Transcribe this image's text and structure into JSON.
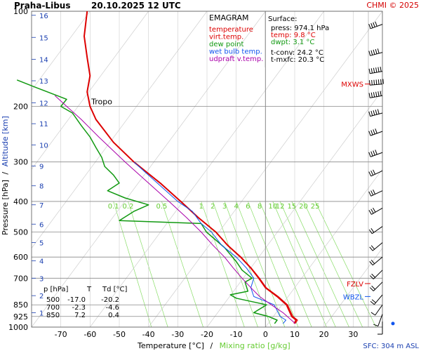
{
  "header": {
    "station": "Praha-Libus",
    "datetime": "20.10.2025 12 UTC",
    "copyright": "CHMI © 2025"
  },
  "chart_data": {
    "type": "line",
    "diagram": "EMAGRAM",
    "x_axis": {
      "label": "Temperature [°C]",
      "label_sep": "/",
      "label_secondary": "Mixing ratio [g/kg]",
      "range": [
        -80,
        40
      ],
      "ticks": [
        -70,
        -60,
        -50,
        -40,
        -30,
        -20,
        -10,
        0,
        10,
        20,
        30
      ]
    },
    "y_axis": {
      "label": "Pressure [hPa]",
      "label_sep": "/",
      "label_secondary": "Altitude [km]",
      "scale": "log",
      "range": [
        1000,
        100
      ],
      "ticks": [
        100,
        200,
        300,
        400,
        500,
        600,
        700,
        850,
        925,
        1000
      ]
    },
    "altitude_labels": [
      {
        "km": "1",
        "p": 900
      },
      {
        "km": "2",
        "p": 795
      },
      {
        "km": "3",
        "p": 700
      },
      {
        "km": "4",
        "p": 617
      },
      {
        "km": "5",
        "p": 540
      },
      {
        "km": "6",
        "p": 472
      },
      {
        "km": "7",
        "p": 410
      },
      {
        "km": "8",
        "p": 357
      },
      {
        "km": "9",
        "p": 309
      },
      {
        "km": "10",
        "p": 265
      },
      {
        "km": "11",
        "p": 227
      },
      {
        "km": "12",
        "p": 195
      },
      {
        "km": "13",
        "p": 166
      },
      {
        "km": "14",
        "p": 142
      },
      {
        "km": "15",
        "p": 121
      },
      {
        "km": "16",
        "p": 103
      }
    ],
    "mixing_ratio_labels": [
      "0.1",
      "0.2",
      "0.5",
      "1",
      "2",
      "3",
      "4",
      "6",
      "8",
      "10",
      "12",
      "15",
      "20",
      "25"
    ],
    "mixing_ratio_label_temps": [
      -52,
      -47,
      -35.5,
      -22,
      -18,
      -14,
      -10,
      -6,
      -2,
      2.5,
      5,
      9,
      13,
      17
    ],
    "legend": {
      "title": "EMAGRAM",
      "items": [
        {
          "label": "temperature",
          "color": "#dd0000"
        },
        {
          "label": "virt.temp.",
          "color": "#dd0000"
        },
        {
          "label": "dew point",
          "color": "#119911"
        },
        {
          "label": "wet bulb temp.",
          "color": "#1155ee"
        },
        {
          "label": "udpraft v.temp.",
          "color": "#aa00aa"
        }
      ]
    },
    "surface": {
      "title": "Surface:",
      "lines": [
        {
          "text": "press: 974.1 hPa",
          "color": "#000000"
        },
        {
          "text": "temp: 9.8 °C",
          "color": "#dd0000"
        },
        {
          "text": "dwpt: 3.1 °C",
          "color": "#119911"
        },
        {
          "text": "t-conv: 24.2 °C",
          "color": "#000000"
        },
        {
          "text": "t-mxfc: 20.3 °C",
          "color": "#000000"
        }
      ]
    },
    "levels": [
      {
        "label": "MXWS",
        "p": 170,
        "color": "#dd0000"
      },
      {
        "label": "FZLV",
        "p": 728,
        "color": "#dd0000"
      },
      {
        "label": "WBZL",
        "p": 800,
        "color": "#1155ee"
      }
    ],
    "tropo_label": "Tropo",
    "tropopause_p": 195,
    "table": {
      "headers": [
        "p [hPa]",
        "T",
        "Td [°C]"
      ],
      "rows": [
        [
          "500",
          "-17.0",
          "-20.2"
        ],
        [
          "700",
          "-2.3",
          "-4.6"
        ],
        [
          "850",
          "7.2",
          "0.4"
        ]
      ]
    },
    "sfc_label": "SFC: 304 m ASL",
    "series": [
      {
        "name": "temperature",
        "color": "#dd0000",
        "width": 2,
        "points": [
          [
            9.8,
            974
          ],
          [
            10.5,
            950
          ],
          [
            9,
            925
          ],
          [
            7.2,
            850
          ],
          [
            4,
            800
          ],
          [
            0,
            750
          ],
          [
            -2.3,
            700
          ],
          [
            -5,
            650
          ],
          [
            -8.5,
            600
          ],
          [
            -13,
            550
          ],
          [
            -17,
            500
          ],
          [
            -23,
            450
          ],
          [
            -29,
            400
          ],
          [
            -36,
            350
          ],
          [
            -45,
            300
          ],
          [
            -52,
            260
          ],
          [
            -58,
            220
          ],
          [
            -60,
            200
          ],
          [
            -61,
            180
          ],
          [
            -60,
            160
          ],
          [
            -61,
            140
          ],
          [
            -62,
            120
          ],
          [
            -61,
            100
          ]
        ]
      },
      {
        "name": "virt.temp.",
        "color": "#dd0000",
        "width": 1,
        "points": [
          [
            10.2,
            974
          ],
          [
            11,
            950
          ],
          [
            9.4,
            925
          ],
          [
            7.6,
            850
          ],
          [
            4.4,
            800
          ],
          [
            0.3,
            750
          ],
          [
            -2,
            700
          ],
          [
            -4.8,
            650
          ],
          [
            -8.3,
            600
          ],
          [
            -12.9,
            550
          ],
          [
            -16.9,
            500
          ],
          [
            -22.9,
            450
          ],
          [
            -28.9,
            400
          ],
          [
            -35.9,
            350
          ],
          [
            -45,
            300
          ],
          [
            -52,
            260
          ],
          [
            -58,
            220
          ],
          [
            -60,
            200
          ],
          [
            -61,
            180
          ],
          [
            -60,
            160
          ],
          [
            -61,
            140
          ],
          [
            -62,
            120
          ],
          [
            -61,
            100
          ]
        ]
      },
      {
        "name": "dew point",
        "color": "#119911",
        "width": 1.5,
        "points": [
          [
            3.1,
            974
          ],
          [
            4,
            950
          ],
          [
            1,
            925
          ],
          [
            -4,
            900
          ],
          [
            0.4,
            850
          ],
          [
            -10,
            810
          ],
          [
            -12,
            790
          ],
          [
            -6,
            770
          ],
          [
            -7,
            720
          ],
          [
            -4.6,
            700
          ],
          [
            -8,
            660
          ],
          [
            -10,
            620
          ],
          [
            -14,
            560
          ],
          [
            -20.2,
            500
          ],
          [
            -22,
            470
          ],
          [
            -50,
            460
          ],
          [
            -45,
            430
          ],
          [
            -40,
            410
          ],
          [
            -48,
            390
          ],
          [
            -54,
            370
          ],
          [
            -50,
            350
          ],
          [
            -52,
            330
          ],
          [
            -55,
            310
          ],
          [
            -56,
            290
          ],
          [
            -58,
            270
          ],
          [
            -60,
            250
          ],
          [
            -63,
            230
          ],
          [
            -66,
            210
          ],
          [
            -70,
            200
          ],
          [
            -68,
            190
          ],
          [
            -78,
            175
          ],
          [
            -85,
            165
          ]
        ]
      },
      {
        "name": "wet bulb temp.",
        "color": "#1155ee",
        "width": 1,
        "points": [
          [
            6,
            974
          ],
          [
            7,
            950
          ],
          [
            5,
            925
          ],
          [
            3,
            850
          ],
          [
            -4,
            800
          ],
          [
            -5,
            750
          ],
          [
            -4,
            700
          ],
          [
            -6.5,
            650
          ],
          [
            -10,
            600
          ],
          [
            -15,
            550
          ],
          [
            -18.5,
            500
          ],
          [
            -22,
            470
          ],
          [
            -25,
            430
          ],
          [
            -30,
            400
          ],
          [
            -37,
            350
          ],
          [
            -45,
            300
          ]
        ]
      },
      {
        "name": "udpraft v.temp.",
        "color": "#aa00aa",
        "width": 1,
        "points": [
          [
            10.2,
            974
          ],
          [
            6,
            900
          ],
          [
            2,
            850
          ],
          [
            -2,
            800
          ],
          [
            -5,
            750
          ],
          [
            -8,
            700
          ],
          [
            -11,
            650
          ],
          [
            -14,
            600
          ],
          [
            -18,
            550
          ],
          [
            -22,
            500
          ],
          [
            -27,
            450
          ],
          [
            -33,
            400
          ],
          [
            -40,
            350
          ],
          [
            -48,
            300
          ],
          [
            -57,
            250
          ],
          [
            -63,
            220
          ],
          [
            -68,
            200
          ],
          [
            -72,
            185
          ]
        ]
      }
    ],
    "wind_barbs": [
      {
        "p": 110,
        "dir": 250,
        "kt": 40
      },
      {
        "p": 135,
        "dir": 255,
        "kt": 45
      },
      {
        "p": 155,
        "dir": 260,
        "kt": 55
      },
      {
        "p": 170,
        "dir": 265,
        "kt": 65
      },
      {
        "p": 185,
        "dir": 260,
        "kt": 55
      },
      {
        "p": 210,
        "dir": 255,
        "kt": 45
      },
      {
        "p": 240,
        "dir": 250,
        "kt": 40
      },
      {
        "p": 280,
        "dir": 250,
        "kt": 35
      },
      {
        "p": 320,
        "dir": 245,
        "kt": 30
      },
      {
        "p": 370,
        "dir": 245,
        "kt": 30
      },
      {
        "p": 420,
        "dir": 240,
        "kt": 25
      },
      {
        "p": 480,
        "dir": 235,
        "kt": 20
      },
      {
        "p": 540,
        "dir": 230,
        "kt": 20
      },
      {
        "p": 600,
        "dir": 230,
        "kt": 15
      },
      {
        "p": 660,
        "dir": 225,
        "kt": 15
      },
      {
        "p": 720,
        "dir": 225,
        "kt": 15
      },
      {
        "p": 790,
        "dir": 220,
        "kt": 15
      },
      {
        "p": 850,
        "dir": 215,
        "kt": 10
      },
      {
        "p": 910,
        "dir": 200,
        "kt": 10
      },
      {
        "p": 960,
        "dir": 180,
        "kt": 5
      }
    ]
  }
}
